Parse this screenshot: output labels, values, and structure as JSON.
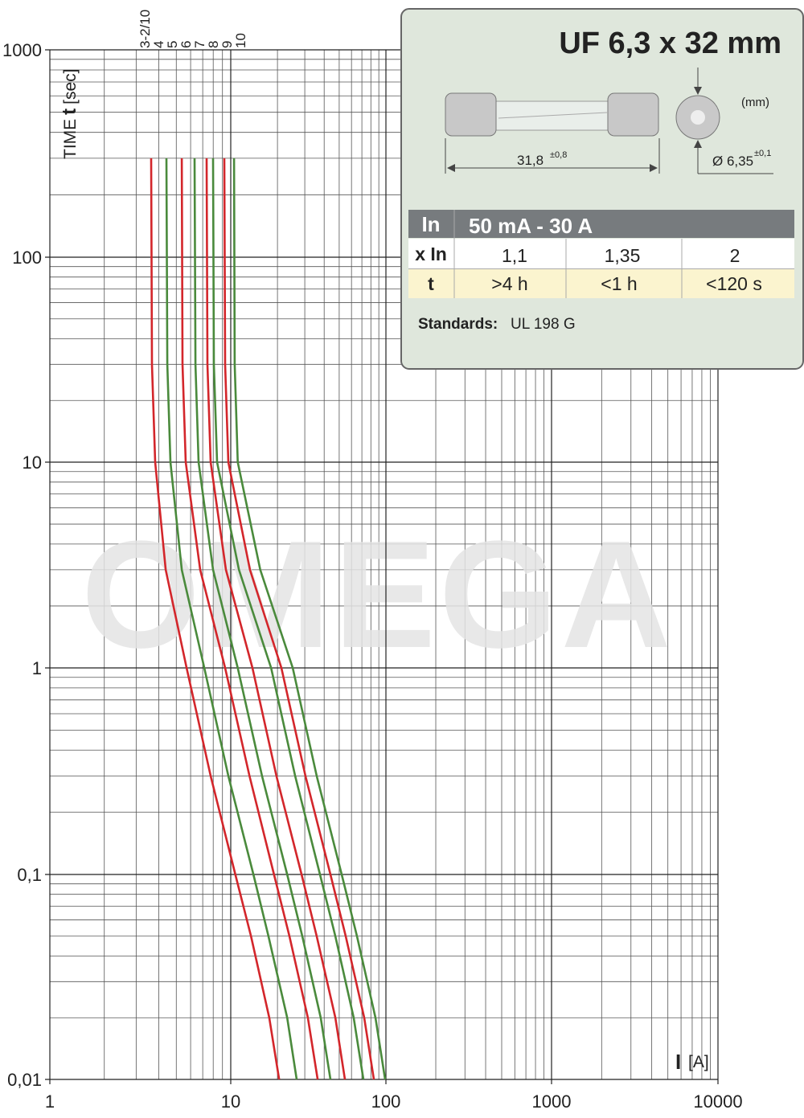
{
  "chart_data": {
    "type": "line",
    "log_x": true,
    "log_y": true,
    "grid": true,
    "xlim": [
      1,
      10000
    ],
    "ylim": [
      0.01,
      1000
    ],
    "xticks": [
      1,
      10,
      100,
      1000,
      10000
    ],
    "yticks": [
      1000,
      100,
      10,
      1,
      {
        "value": 0.1,
        "label": "0,1"
      },
      {
        "value": 0.01,
        "label": "0,01"
      }
    ],
    "ylabel": {
      "prefix": "TIME",
      "symbol": "t",
      "unit": "[sec]"
    },
    "xlabel": {
      "symbol": "I",
      "unit": "[A]"
    },
    "watermark": "OMEGA",
    "series": [
      {
        "name": "3-2/10",
        "color": "#d3262b",
        "x": [
          3.63,
          3.67,
          3.82,
          4.37,
          5.7,
          7.74,
          10.7,
          13.5,
          17.7,
          20.5
        ],
        "values": [
          300,
          30,
          10,
          3,
          1,
          0.3,
          0.1,
          0.05,
          0.02,
          0.01
        ]
      },
      {
        "name": "4",
        "color": "#4a8a3c",
        "x": [
          4.41,
          4.46,
          4.64,
          5.36,
          7.14,
          9.7,
          14.0,
          17.5,
          23.1,
          26.6
        ],
        "values": [
          300,
          30,
          10,
          3,
          1,
          0.3,
          0.1,
          0.05,
          0.02,
          0.01
        ]
      },
      {
        "name": "5",
        "color": "#d3262b",
        "x": [
          5.36,
          5.41,
          5.64,
          6.78,
          9.31,
          13.2,
          19.0,
          23.9,
          31.4,
          36.3
        ],
        "values": [
          300,
          30,
          10,
          3,
          1,
          0.3,
          0.1,
          0.05,
          0.02,
          0.01
        ]
      },
      {
        "name": "6",
        "color": "#4a8a3c",
        "x": [
          6.31,
          6.38,
          6.64,
          7.98,
          11.1,
          15.9,
          23.1,
          28.9,
          38.0,
          43.9
        ],
        "values": [
          300,
          30,
          10,
          3,
          1,
          0.3,
          0.1,
          0.05,
          0.02,
          0.01
        ]
      },
      {
        "name": "7",
        "color": "#d3262b",
        "x": [
          7.36,
          7.43,
          7.74,
          9.4,
          13.8,
          19.7,
          28.6,
          35.8,
          47.2,
          54.4
        ],
        "values": [
          300,
          30,
          10,
          3,
          1,
          0.3,
          0.1,
          0.05,
          0.02,
          0.01
        ]
      },
      {
        "name": "8",
        "color": "#4a8a3c",
        "x": [
          7.98,
          8.07,
          8.4,
          11.3,
          18.2,
          26.0,
          37.6,
          47.2,
          62.0,
          71.6
        ],
        "values": [
          300,
          30,
          10,
          3,
          1,
          0.3,
          0.1,
          0.05,
          0.02,
          0.01
        ]
      },
      {
        "name": "9",
        "color": "#d3262b",
        "x": [
          9.21,
          9.31,
          9.7,
          13.3,
          21.2,
          30.3,
          43.9,
          55.1,
          72.5,
          83.6
        ],
        "values": [
          300,
          30,
          10,
          3,
          1,
          0.3,
          0.1,
          0.05,
          0.02,
          0.01
        ]
      },
      {
        "name": "10",
        "color": "#4a8a3c",
        "x": [
          10.5,
          10.6,
          11.1,
          15.5,
          25.1,
          35.8,
          51.9,
          65.1,
          85.6,
          98.8
        ],
        "values": [
          300,
          30,
          10,
          3,
          1,
          0.3,
          0.1,
          0.05,
          0.02,
          0.01
        ]
      }
    ]
  },
  "info_box": {
    "title": "UF 6,3 x 32 mm",
    "unit": "(mm)",
    "length": "31,8",
    "length_tolerance": "±0,8",
    "diameter": "Ø 6,35",
    "diameter_tolerance": "±0,1",
    "table": {
      "rows": [
        [
          "In",
          "50 mA - 30 A"
        ],
        [
          "x In",
          "1,1",
          "1,35",
          "2"
        ],
        [
          "t",
          ">4 h",
          "<1 h",
          "<120 s"
        ]
      ]
    },
    "standards_label": "Standards:",
    "standards": "UL 198 G"
  }
}
